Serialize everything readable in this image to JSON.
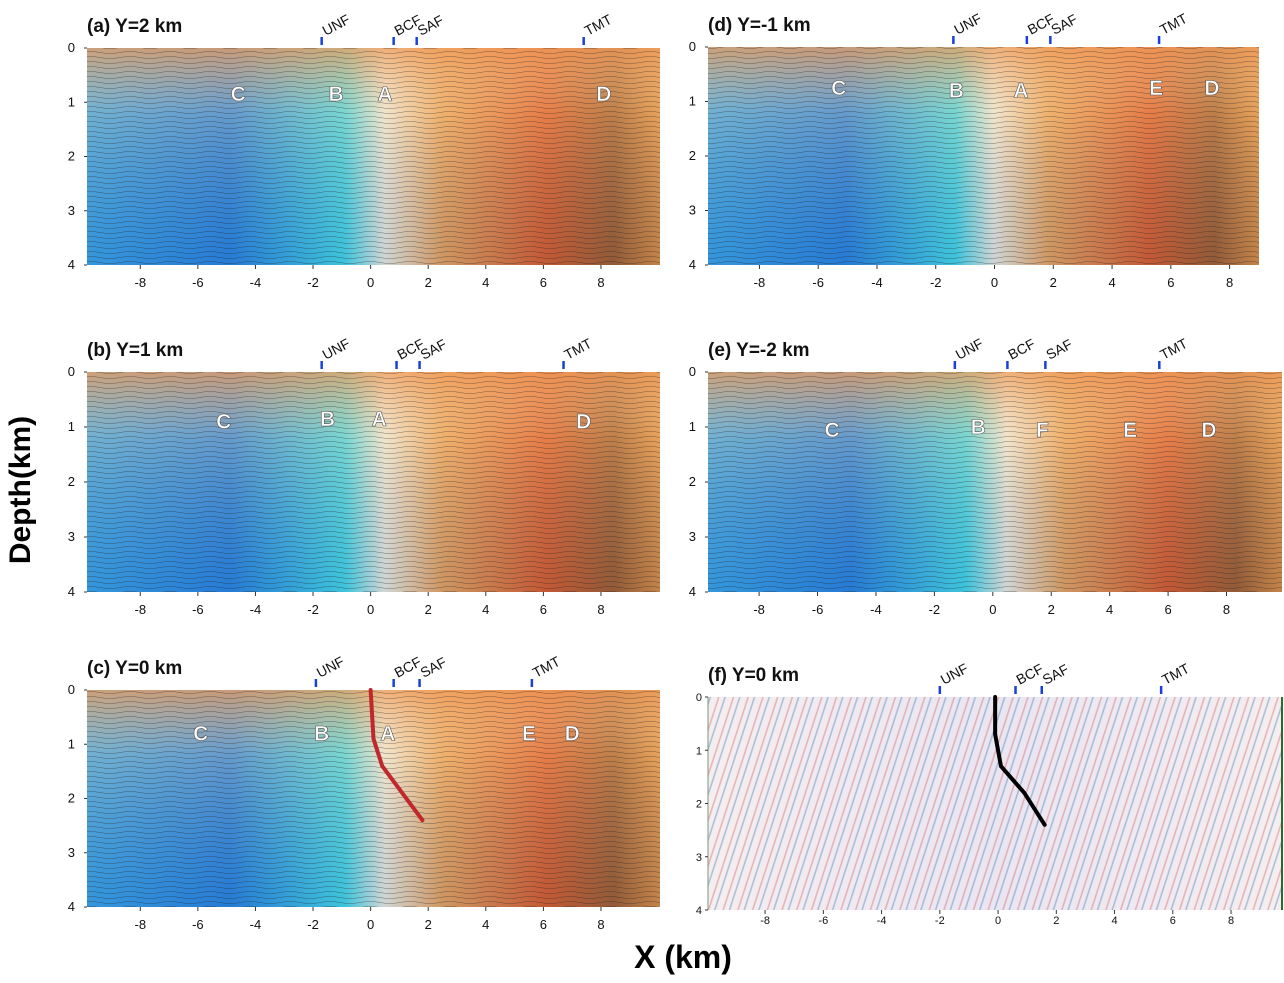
{
  "figure": {
    "ylabel": "Depth(km)",
    "xlabel": "X (km)"
  },
  "chart_data": [
    {
      "type": "image",
      "title": "(a) Y=2 km",
      "xlim": [
        -9.85,
        10.05
      ],
      "ylim": [
        4,
        0
      ],
      "xticks": [
        -8,
        -6,
        -4,
        -2,
        0,
        2,
        4,
        6,
        8
      ],
      "yticks": [
        0,
        1,
        2,
        3,
        4
      ],
      "faults": [
        {
          "label": "UNF",
          "x": -1.7
        },
        {
          "label": "BCF",
          "x": 0.8
        },
        {
          "label": "SAF",
          "x": 1.6
        },
        {
          "label": "TMT",
          "x": 7.4
        }
      ],
      "annotations": [
        {
          "label": "C",
          "x": -4.6,
          "y": 0.85
        },
        {
          "label": "B",
          "x": -1.2,
          "y": 0.85
        },
        {
          "label": "A",
          "x": 0.5,
          "y": 0.85
        },
        {
          "label": "D",
          "x": 8.1,
          "y": 0.85
        }
      ]
    },
    {
      "type": "image",
      "title": "(b) Y=1 km",
      "xlim": [
        -9.85,
        10.05
      ],
      "ylim": [
        4,
        0
      ],
      "xticks": [
        -8,
        -6,
        -4,
        -2,
        0,
        2,
        4,
        6,
        8
      ],
      "yticks": [
        0,
        1,
        2,
        3,
        4
      ],
      "faults": [
        {
          "label": "UNF",
          "x": -1.7
        },
        {
          "label": "BCF",
          "x": 0.9
        },
        {
          "label": "SAF",
          "x": 1.7
        },
        {
          "label": "TMT",
          "x": 6.7
        }
      ],
      "annotations": [
        {
          "label": "C",
          "x": -5.1,
          "y": 0.9
        },
        {
          "label": "B",
          "x": -1.5,
          "y": 0.85
        },
        {
          "label": "A",
          "x": 0.3,
          "y": 0.85
        },
        {
          "label": "D",
          "x": 7.4,
          "y": 0.9
        }
      ]
    },
    {
      "type": "image",
      "title": "(c) Y=0 km",
      "xlim": [
        -9.85,
        10.05
      ],
      "ylim": [
        4,
        0
      ],
      "xticks": [
        -8,
        -6,
        -4,
        -2,
        0,
        2,
        4,
        6,
        8
      ],
      "yticks": [
        0,
        1,
        2,
        3,
        4
      ],
      "faults": [
        {
          "label": "UNF",
          "x": -1.9
        },
        {
          "label": "BCF",
          "x": 0.8
        },
        {
          "label": "SAF",
          "x": 1.7
        },
        {
          "label": "TMT",
          "x": 5.6
        }
      ],
      "annotations": [
        {
          "label": "C",
          "x": -5.9,
          "y": 0.8
        },
        {
          "label": "B",
          "x": -1.7,
          "y": 0.8
        },
        {
          "label": "A",
          "x": 0.6,
          "y": 0.8
        },
        {
          "label": "E",
          "x": 5.5,
          "y": 0.8
        },
        {
          "label": "D",
          "x": 7.0,
          "y": 0.8
        }
      ],
      "trace": {
        "color": "#c0282d",
        "x": [
          0,
          0.1,
          0.4,
          1.8
        ],
        "y": [
          0,
          0.9,
          1.4,
          2.4
        ]
      }
    },
    {
      "type": "image",
      "title": "(d) Y=-1 km",
      "xlim": [
        -9.75,
        9.0
      ],
      "ylim": [
        4,
        0
      ],
      "xticks": [
        -8,
        -6,
        -4,
        -2,
        0,
        2,
        4,
        6,
        8
      ],
      "yticks": [
        0,
        1,
        2,
        3,
        4
      ],
      "faults": [
        {
          "label": "UNF",
          "x": -1.4
        },
        {
          "label": "BCF",
          "x": 1.1
        },
        {
          "label": "SAF",
          "x": 1.9
        },
        {
          "label": "TMT",
          "x": 5.6
        }
      ],
      "annotations": [
        {
          "label": "C",
          "x": -5.3,
          "y": 0.75
        },
        {
          "label": "B",
          "x": -1.3,
          "y": 0.8
        },
        {
          "label": "A",
          "x": 0.9,
          "y": 0.8
        },
        {
          "label": "E",
          "x": 5.5,
          "y": 0.75
        },
        {
          "label": "D",
          "x": 7.4,
          "y": 0.75
        }
      ]
    },
    {
      "type": "image",
      "title": "(e) Y=-2 km",
      "xlim": [
        -9.75,
        9.9
      ],
      "ylim": [
        4,
        0
      ],
      "xticks": [
        -8,
        -6,
        -4,
        -2,
        0,
        2,
        4,
        6,
        8
      ],
      "yticks": [
        0,
        1,
        2,
        3,
        4
      ],
      "faults": [
        {
          "label": "UNF",
          "x": -1.3
        },
        {
          "label": "BCF",
          "x": 0.5
        },
        {
          "label": "SAF",
          "x": 1.8
        },
        {
          "label": "TMT",
          "x": 5.7
        }
      ],
      "annotations": [
        {
          "label": "C",
          "x": -5.5,
          "y": 1.05
        },
        {
          "label": "B",
          "x": -0.5,
          "y": 1.0
        },
        {
          "label": "F",
          "x": 1.7,
          "y": 1.05
        },
        {
          "label": "E",
          "x": 4.7,
          "y": 1.05
        },
        {
          "label": "D",
          "x": 7.4,
          "y": 1.05
        }
      ]
    },
    {
      "type": "image",
      "title": "(f) Y=0 km",
      "xlim": [
        -9.96,
        9.75
      ],
      "ylim": [
        4,
        0
      ],
      "xticks": [
        -8,
        -6,
        -4,
        -2,
        0,
        2,
        4,
        6,
        8
      ],
      "yticks": [
        0,
        1,
        2,
        3,
        4
      ],
      "faults": [
        {
          "label": "UNF",
          "x": -2.0
        },
        {
          "label": "BCF",
          "x": 0.6
        },
        {
          "label": "SAF",
          "x": 1.5
        },
        {
          "label": "TMT",
          "x": 5.6
        }
      ],
      "annotations": [],
      "trace": {
        "color": "#000000",
        "x": [
          -0.1,
          -0.1,
          0.1,
          0.9,
          1.6
        ],
        "y": [
          0,
          0.7,
          1.3,
          1.8,
          2.4
        ]
      }
    }
  ]
}
